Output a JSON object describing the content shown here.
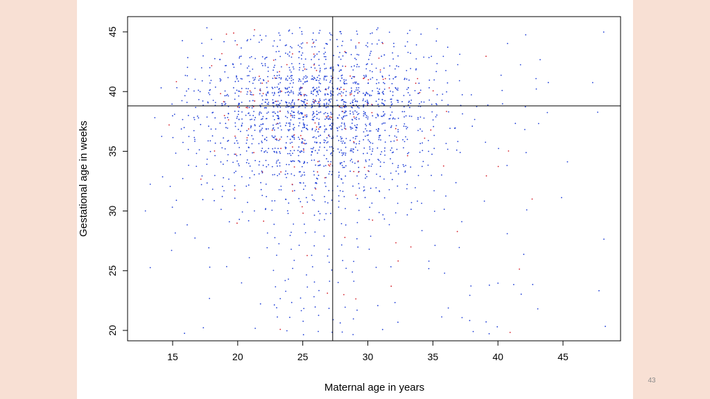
{
  "slide": {
    "number": "43"
  },
  "chart_data": {
    "type": "scatter",
    "title": "",
    "xlabel": "Maternal age in years",
    "ylabel": "Gestational age in weeks",
    "xlim": [
      12,
      49
    ],
    "ylim": [
      19,
      46
    ],
    "xticks": [
      15,
      20,
      25,
      30,
      35,
      40,
      45
    ],
    "yticks": [
      20,
      25,
      30,
      35,
      40,
      45
    ],
    "reference_lines": {
      "vertical_x": 27.3,
      "horizontal_y": 38.8
    },
    "grid": false,
    "legend": "none",
    "colors": {
      "primary": "#1f3fd6",
      "secondary": "#d4202a",
      "axis": "#000000"
    },
    "series": [
      {
        "values_description_key": "points",
        "points_per_cell_rule": "maternal age 13-48 by gestational week 20-45; point density peaks at 38-40 weeks and 20-30 years"
      }
    ]
  }
}
